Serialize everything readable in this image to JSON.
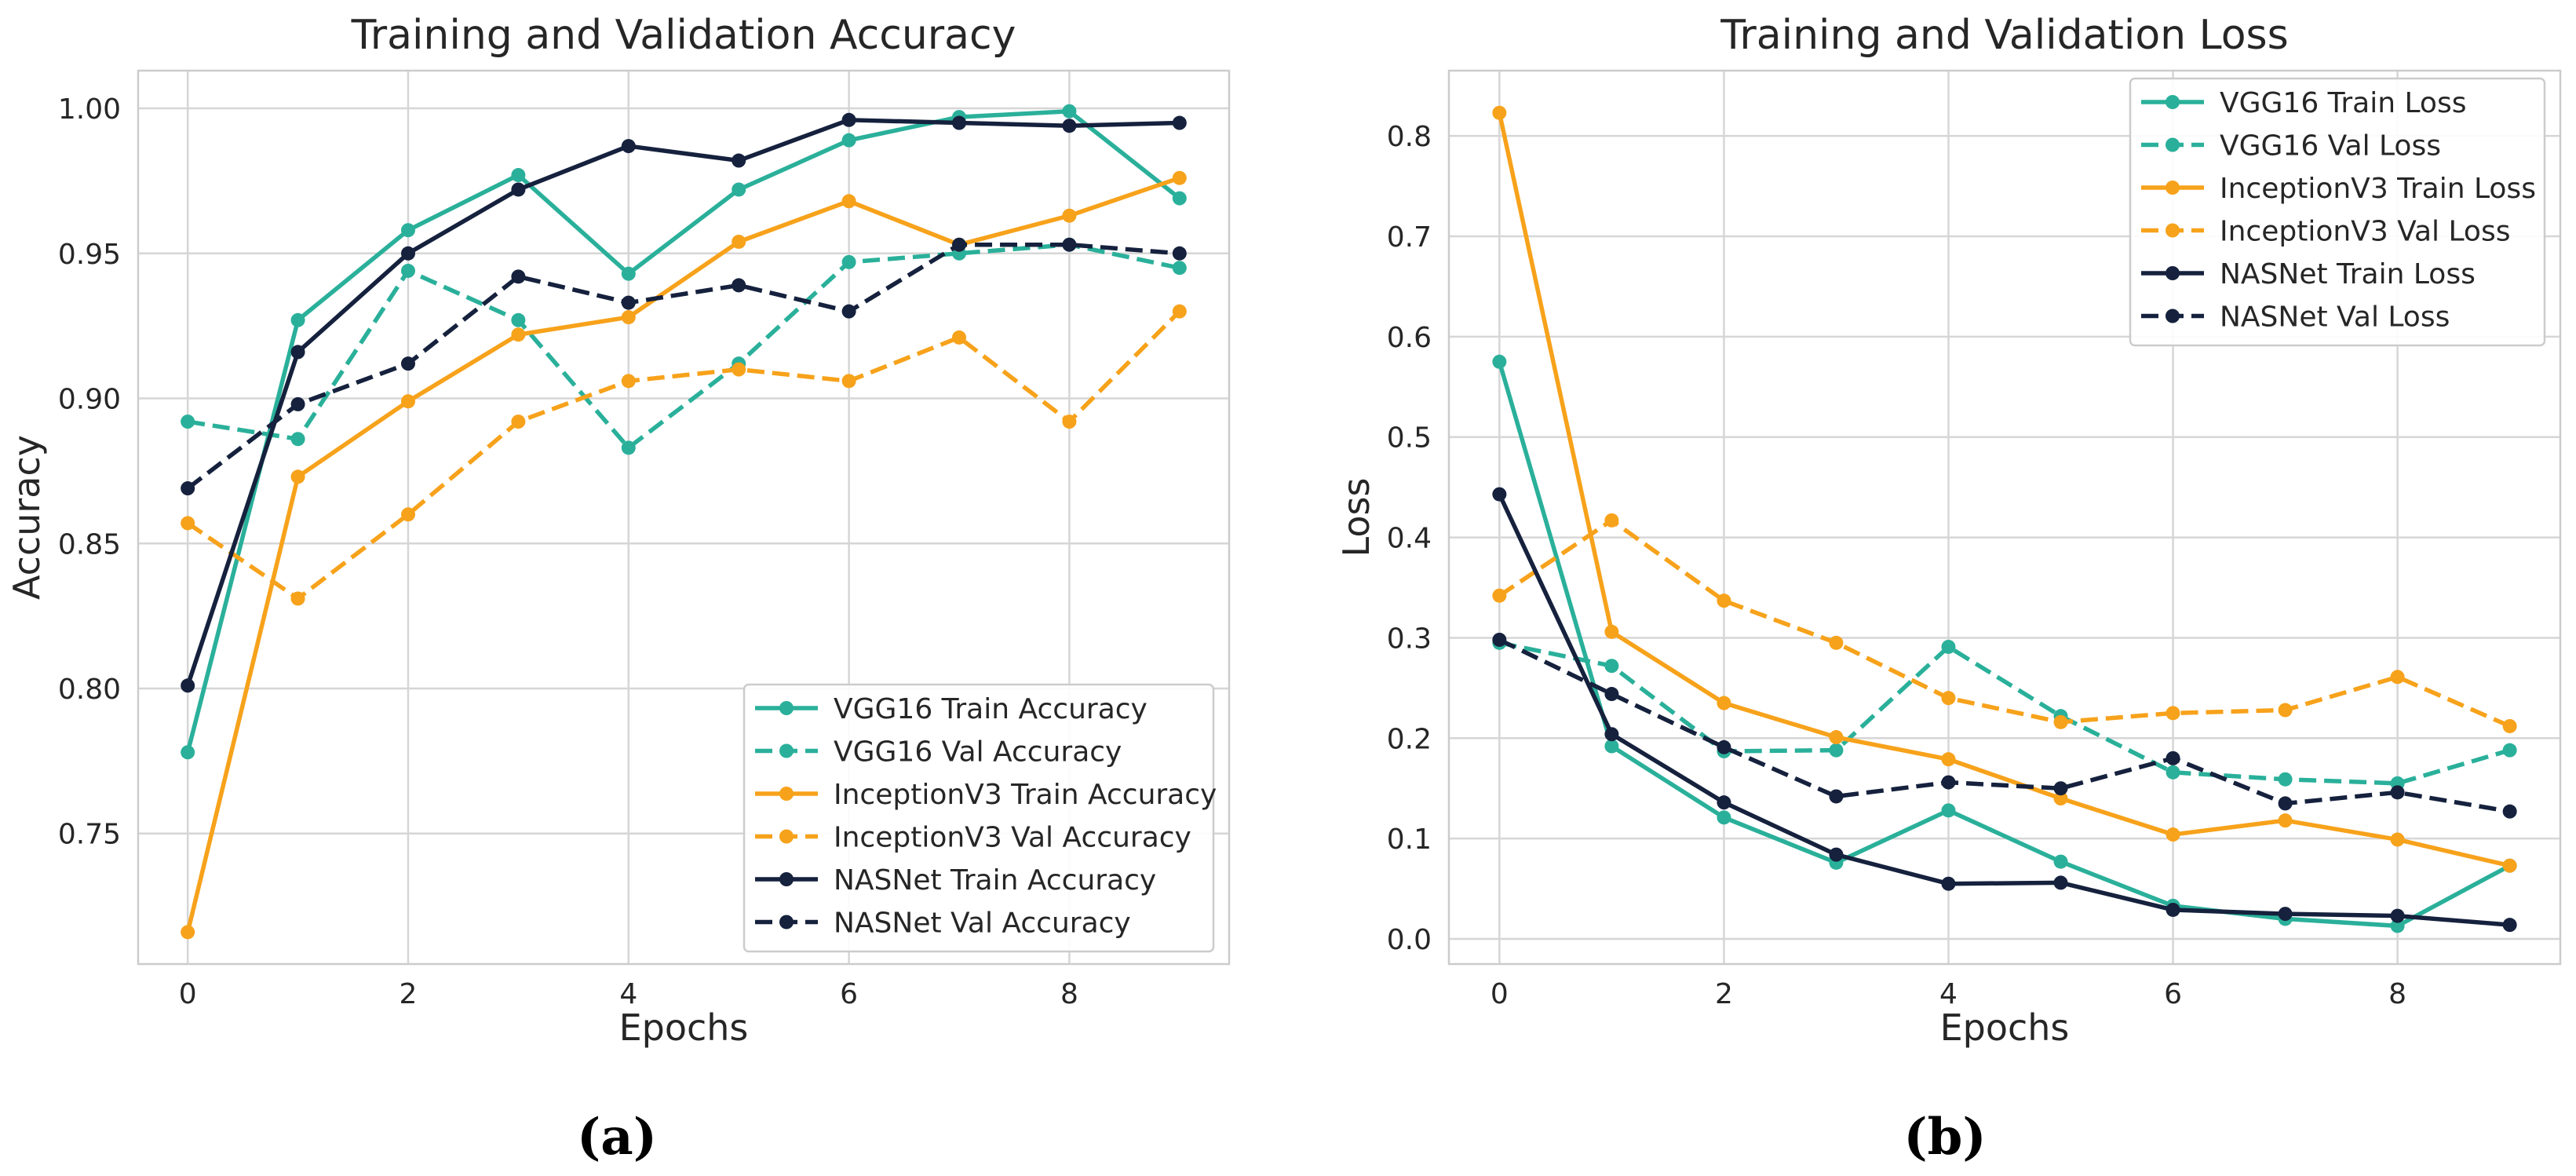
{
  "chart_data": [
    {
      "type": "line",
      "title": "Training and Validation Accuracy",
      "xlabel": "Epochs",
      "ylabel": "Accuracy",
      "panel_label": "(a)",
      "xlim": [
        -0.45,
        9.45
      ],
      "ylim": [
        0.705,
        1.013
      ],
      "xticks": [
        0,
        2,
        4,
        6,
        8
      ],
      "yticks": [
        0.75,
        0.8,
        0.85,
        0.9,
        0.95,
        1.0
      ],
      "ytick_labels": [
        "0.75",
        "0.80",
        "0.85",
        "0.90",
        "0.95",
        "1.00"
      ],
      "grid": true,
      "legend_position": "lower-right",
      "x": [
        0,
        1,
        2,
        3,
        4,
        5,
        6,
        7,
        8,
        9
      ],
      "series": [
        {
          "name": "VGG16 Train Accuracy",
          "color": "#2ab09a",
          "dashed": false,
          "values": [
            0.778,
            0.927,
            0.958,
            0.977,
            0.943,
            0.972,
            0.989,
            0.997,
            0.999,
            0.969
          ]
        },
        {
          "name": "VGG16 Val Accuracy",
          "color": "#2ab09a",
          "dashed": true,
          "values": [
            0.892,
            0.886,
            0.944,
            0.927,
            0.883,
            0.912,
            0.947,
            0.95,
            0.953,
            0.945
          ]
        },
        {
          "name": "InceptionV3 Train Accuracy",
          "color": "#f7a21b",
          "dashed": false,
          "values": [
            0.716,
            0.873,
            0.899,
            0.922,
            0.928,
            0.954,
            0.968,
            0.953,
            0.963,
            0.976
          ]
        },
        {
          "name": "InceptionV3 Val Accuracy",
          "color": "#f7a21b",
          "dashed": true,
          "values": [
            0.857,
            0.831,
            0.86,
            0.892,
            0.906,
            0.91,
            0.906,
            0.921,
            0.892,
            0.93
          ]
        },
        {
          "name": "NASNet Train Accuracy",
          "color": "#15213d",
          "dashed": false,
          "values": [
            0.801,
            0.916,
            0.95,
            0.972,
            0.987,
            0.982,
            0.996,
            0.995,
            0.994,
            0.995
          ]
        },
        {
          "name": "NASNet Val Accuracy",
          "color": "#15213d",
          "dashed": true,
          "values": [
            0.869,
            0.898,
            0.912,
            0.942,
            0.933,
            0.939,
            0.93,
            0.953,
            0.953,
            0.95
          ]
        }
      ]
    },
    {
      "type": "line",
      "title": "Training and Validation Loss",
      "xlabel": "Epochs",
      "ylabel": "Loss",
      "panel_label": "(b)",
      "xlim": [
        -0.45,
        9.45
      ],
      "ylim": [
        -0.025,
        0.865
      ],
      "xticks": [
        0,
        2,
        4,
        6,
        8
      ],
      "yticks": [
        0.0,
        0.1,
        0.2,
        0.3,
        0.4,
        0.5,
        0.6,
        0.7,
        0.8
      ],
      "ytick_labels": [
        "0.0",
        "0.1",
        "0.2",
        "0.3",
        "0.4",
        "0.5",
        "0.6",
        "0.7",
        "0.8"
      ],
      "grid": true,
      "legend_position": "upper-right",
      "x": [
        0,
        1,
        2,
        3,
        4,
        5,
        6,
        7,
        8,
        9
      ],
      "series": [
        {
          "name": "VGG16 Train Loss",
          "color": "#2ab09a",
          "dashed": false,
          "values": [
            0.575,
            0.192,
            0.121,
            0.076,
            0.128,
            0.077,
            0.033,
            0.02,
            0.013,
            0.073
          ]
        },
        {
          "name": "VGG16 Val Loss",
          "color": "#2ab09a",
          "dashed": true,
          "values": [
            0.295,
            0.272,
            0.187,
            0.188,
            0.291,
            0.222,
            0.166,
            0.159,
            0.155,
            0.188
          ]
        },
        {
          "name": "InceptionV3 Train Loss",
          "color": "#f7a21b",
          "dashed": false,
          "values": [
            0.823,
            0.306,
            0.235,
            0.201,
            0.179,
            0.14,
            0.104,
            0.118,
            0.099,
            0.073
          ]
        },
        {
          "name": "InceptionV3 Val Loss",
          "color": "#f7a21b",
          "dashed": true,
          "values": [
            0.342,
            0.417,
            0.337,
            0.295,
            0.24,
            0.216,
            0.225,
            0.228,
            0.261,
            0.212
          ]
        },
        {
          "name": "NASNet Train Loss",
          "color": "#15213d",
          "dashed": false,
          "values": [
            0.443,
            0.204,
            0.136,
            0.084,
            0.055,
            0.056,
            0.029,
            0.025,
            0.023,
            0.014
          ]
        },
        {
          "name": "NASNet Val Loss",
          "color": "#15213d",
          "dashed": true,
          "values": [
            0.298,
            0.244,
            0.191,
            0.142,
            0.156,
            0.15,
            0.18,
            0.135,
            0.146,
            0.127
          ]
        }
      ]
    }
  ]
}
